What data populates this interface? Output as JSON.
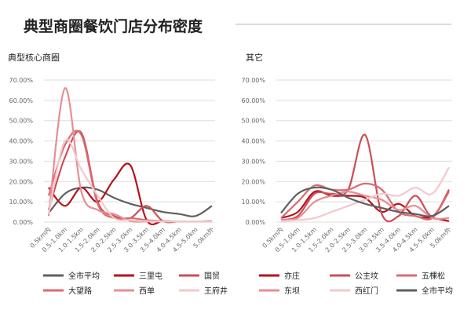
{
  "page": {
    "title": "典型商圈餐饮门店分布密度"
  },
  "colors": {
    "grid": "#dddddd",
    "axis_text": "#666666",
    "title": "#222222",
    "rule": "#bbbbbb"
  },
  "chart_data": [
    {
      "type": "line",
      "title": "典型核心商圈",
      "categories": [
        "0.5km内",
        "0.5-1.0km",
        "1.0-1.5km",
        "1.5-2.0km",
        "2.0-2.5km",
        "2.5-3.0km",
        "3.0-3.5km",
        "3.5-4.0km",
        "4.0-4.5km",
        "4.5-5.0km",
        "5.0km外"
      ],
      "y_ticks": [
        "0.00%",
        "10.00%",
        "20.00%",
        "30.00%",
        "40.00%",
        "50.00%",
        "60.00%",
        "70.00%"
      ],
      "ylim": [
        0,
        70
      ],
      "legend_position": "bottom",
      "series": [
        {
          "name": "全市平均",
          "color": "#5f5f5f",
          "values": [
            4.5,
            14,
            17,
            16,
            12,
            9,
            7,
            5,
            4,
            3,
            8
          ]
        },
        {
          "name": "三里屯",
          "color": "#b5121b",
          "values": [
            17,
            8,
            17,
            10,
            21,
            28,
            1,
            0.5,
            0.3,
            0.3,
            0.5
          ]
        },
        {
          "name": "国贸",
          "color": "#cc4f55",
          "values": [
            6,
            32,
            44,
            10,
            3,
            2,
            8,
            0.5,
            0.3,
            0.3,
            0.3
          ]
        },
        {
          "name": "大望路",
          "color": "#d96b70",
          "values": [
            13,
            38,
            43,
            9,
            2,
            2,
            1,
            0.5,
            0.3,
            0.3,
            0.5
          ]
        },
        {
          "name": "西单",
          "color": "#e68e93",
          "values": [
            3,
            66,
            15,
            6,
            4,
            0.5,
            0.3,
            0.3,
            0.3,
            0.3,
            0.3
          ]
        },
        {
          "name": "王府井",
          "color": "#f2c9cc",
          "values": [
            4,
            40,
            26,
            13,
            2,
            1,
            0.5,
            0.3,
            0.3,
            0.3,
            0.3
          ]
        }
      ]
    },
    {
      "type": "line",
      "title": "其它",
      "categories": [
        "0.5km内",
        "0.5-1.0km",
        "1.0-1.5km",
        "1.5-2.0km",
        "2.0-2.5km",
        "2.5-3.0km",
        "3.0-3.5km",
        "3.5-4.0km",
        "4.0-4.5km",
        "4.5-5.0km",
        "5.0km外"
      ],
      "y_ticks": [
        "0.00%",
        "10.00%",
        "20.00%",
        "30.00%",
        "40.00%",
        "50.00%",
        "60.00%",
        "70.00%"
      ],
      "ylim": [
        0,
        70
      ],
      "legend_position": "bottom",
      "series": [
        {
          "name": "亦庄",
          "color": "#b5121b",
          "values": [
            2,
            5,
            15,
            13,
            13,
            12,
            5,
            9,
            3,
            2,
            0.5
          ]
        },
        {
          "name": "公主坟",
          "color": "#cc4f55",
          "values": [
            1,
            3,
            14,
            14,
            16,
            43,
            4,
            3,
            13,
            3,
            16
          ]
        },
        {
          "name": "五棵松",
          "color": "#d96b70",
          "values": [
            2,
            10,
            18,
            16,
            16,
            19,
            16,
            5,
            3,
            2,
            15
          ]
        },
        {
          "name": "东坝",
          "color": "#e68e93",
          "values": [
            1,
            2,
            10,
            13,
            15,
            13,
            11,
            6,
            8,
            2,
            2
          ]
        },
        {
          "name": "西红门",
          "color": "#f2c9cc",
          "values": [
            0.5,
            1,
            2,
            5,
            8,
            11,
            14,
            13,
            17,
            14,
            27
          ]
        },
        {
          "name": "全市平均",
          "color": "#5f5f5f",
          "values": [
            4.5,
            14,
            17,
            16,
            12,
            9,
            7,
            5,
            4,
            3,
            8
          ]
        }
      ]
    }
  ]
}
